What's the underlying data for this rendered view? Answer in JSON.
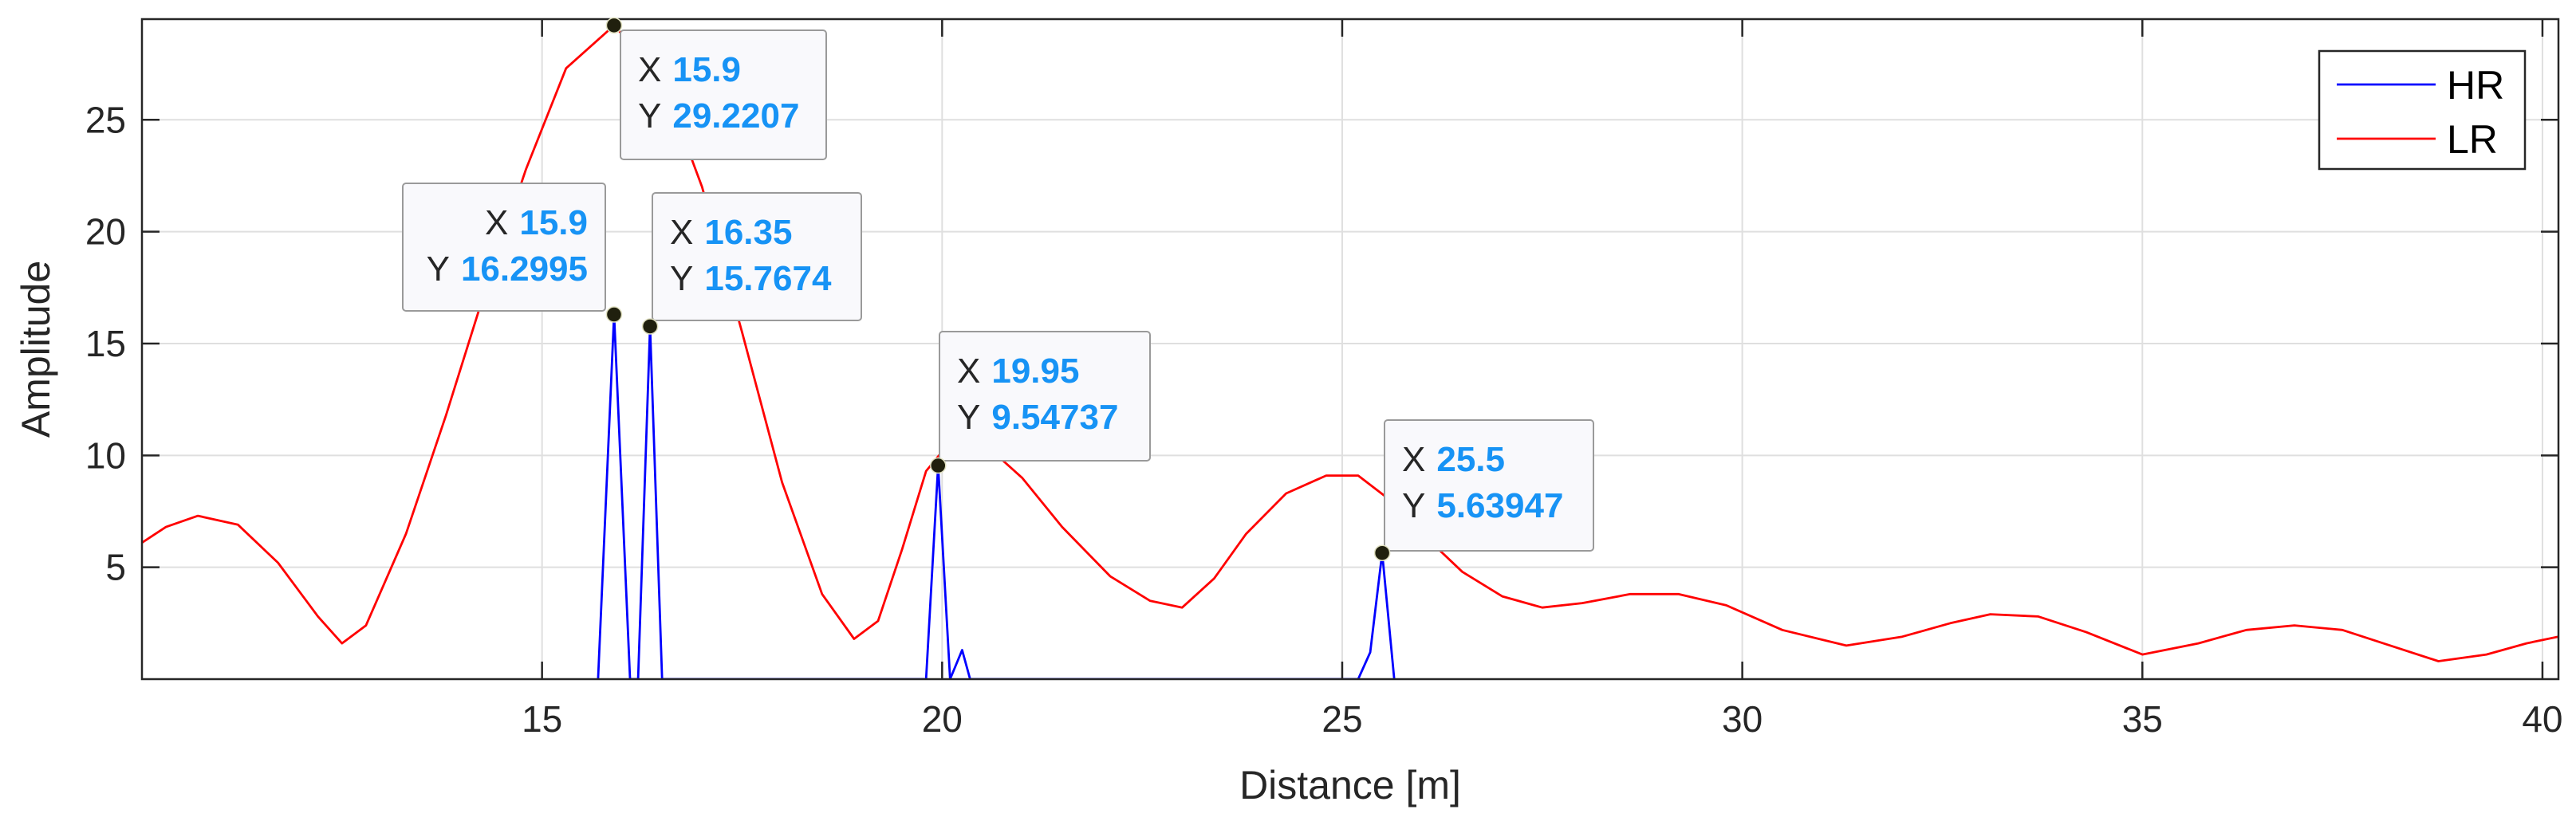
{
  "chart_data": {
    "type": "line",
    "title": "",
    "xlabel": "Distance [m]",
    "ylabel": "Amplitude",
    "xlim": [
      10,
      40.2
    ],
    "ylim": [
      0,
      29.5
    ],
    "xticks": [
      15,
      20,
      25,
      30,
      35,
      40
    ],
    "yticks": [
      5,
      10,
      15,
      20,
      25
    ],
    "grid": true,
    "legend_placement": "top-right",
    "colors": {
      "HR": "#0000ff",
      "LR": "#ff0000",
      "datatip_value": "#1793f5"
    },
    "series": [
      {
        "name": "HR",
        "x": [
          15.7,
          15.9,
          16.1,
          16.2,
          16.35,
          16.5,
          19.8,
          19.95,
          20.1,
          20.25,
          20.35,
          25.2,
          25.35,
          25.5,
          25.65
        ],
        "y": [
          0,
          16.2995,
          0,
          0,
          15.7674,
          0,
          0,
          9.54737,
          0,
          1.3,
          0,
          0,
          1.2,
          5.63947,
          0
        ]
      },
      {
        "name": "LR",
        "x": [
          10,
          10.3,
          10.7,
          11.2,
          11.7,
          12.2,
          12.5,
          12.8,
          13.3,
          13.8,
          14.3,
          14.8,
          15.3,
          15.9,
          16.5,
          17.0,
          17.5,
          18.0,
          18.5,
          18.9,
          19.2,
          19.5,
          19.8,
          20.1,
          20.5,
          21.0,
          21.5,
          22.1,
          22.6,
          23.0,
          23.4,
          23.8,
          24.3,
          24.8,
          25.2,
          25.6,
          26.0,
          26.5,
          27.0,
          27.5,
          28.0,
          28.6,
          29.2,
          29.8,
          30.5,
          31.3,
          32.0,
          32.6,
          33.1,
          33.7,
          34.3,
          35.0,
          35.7,
          36.3,
          36.9,
          37.5,
          38.1,
          38.7,
          39.3,
          39.8,
          40.2
        ],
        "y": [
          6.1,
          6.8,
          7.3,
          6.9,
          5.2,
          2.8,
          1.6,
          2.4,
          6.5,
          11.8,
          17.5,
          22.8,
          27.3,
          29.2207,
          26.8,
          22.0,
          15.5,
          8.8,
          3.8,
          1.8,
          2.6,
          5.8,
          9.3,
          10.6,
          10.6,
          9.0,
          6.8,
          4.6,
          3.5,
          3.2,
          4.5,
          6.5,
          8.3,
          9.1,
          9.1,
          8.0,
          6.5,
          4.8,
          3.7,
          3.2,
          3.4,
          3.8,
          3.8,
          3.3,
          2.2,
          1.5,
          1.9,
          2.5,
          2.9,
          2.8,
          2.1,
          1.1,
          1.6,
          2.2,
          2.4,
          2.2,
          1.5,
          0.8,
          1.1,
          1.6,
          1.9
        ]
      }
    ],
    "datatips": [
      {
        "x": 15.9,
        "y": 29.2207,
        "x_text": "15.9",
        "y_text": "29.2207"
      },
      {
        "x": 15.9,
        "y": 16.2995,
        "x_text": "15.9",
        "y_text": "16.2995"
      },
      {
        "x": 16.35,
        "y": 15.7674,
        "x_text": "16.35",
        "y_text": "15.7674"
      },
      {
        "x": 19.95,
        "y": 9.54737,
        "x_text": "19.95",
        "y_text": "9.54737"
      },
      {
        "x": 25.5,
        "y": 5.63947,
        "x_text": "25.5",
        "y_text": "5.63947"
      }
    ],
    "datatip_key_x": "X",
    "datatip_key_y": "Y"
  }
}
